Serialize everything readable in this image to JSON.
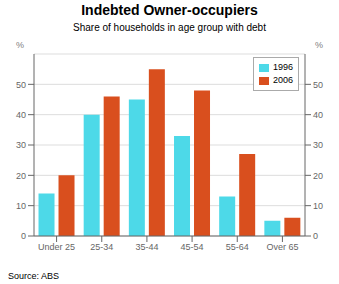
{
  "chart_data": {
    "type": "bar",
    "title": "Indebted Owner-occupiers",
    "subtitle": "Share of households in age group with debt",
    "categories": [
      "Under 25",
      "25-34",
      "35-44",
      "45-54",
      "55-64",
      "Over 65"
    ],
    "series": [
      {
        "name": "1996",
        "color": "#4dd9e8",
        "values": [
          14,
          40,
          45,
          33,
          13,
          5
        ]
      },
      {
        "name": "2006",
        "color": "#d94f1e",
        "values": [
          20,
          46,
          55,
          48,
          27,
          6
        ]
      }
    ],
    "ylim": [
      0,
      60
    ],
    "yticks": [
      0,
      10,
      20,
      30,
      40,
      50
    ],
    "y2lim": [
      0,
      60
    ],
    "y2ticks": [
      0,
      10,
      20,
      30,
      40,
      50
    ],
    "ylabel": "%",
    "y2label": "%",
    "annotations": [
      "Source: ABS"
    ],
    "grid": true,
    "legend": "upper right"
  }
}
